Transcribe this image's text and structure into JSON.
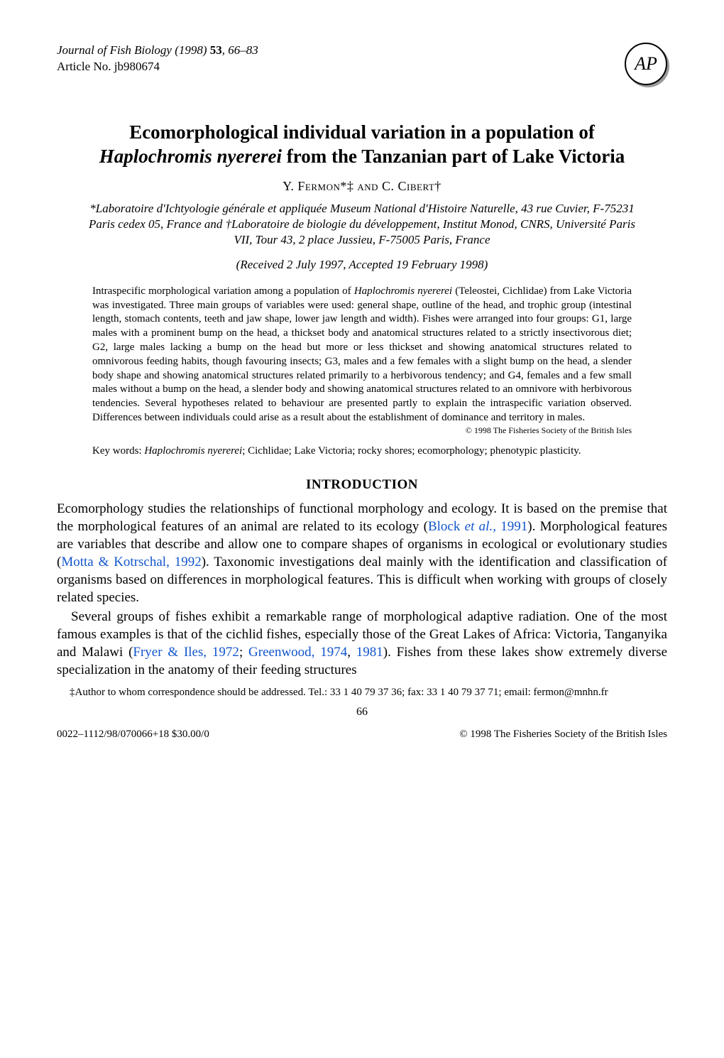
{
  "journal": {
    "name": "Journal of Fish Biology",
    "year": "(1998)",
    "volume": "53",
    "pages": "66–83",
    "article_line": "Article No. jb980674"
  },
  "logo": {
    "text": "AP"
  },
  "title": {
    "pre": "Ecomorphological individual variation in a population of ",
    "species": "Haplochromis nyererei",
    "post": " from the Tanzanian part of Lake Victoria"
  },
  "authors": "Y. Fermon*‡ and C. Cibert†",
  "affiliations": "*Laboratoire d'Ichtyologie générale et appliquée Museum National d'Histoire Naturelle, 43 rue Cuvier, F-75231 Paris cedex 05, France and †Laboratoire de biologie du développement, Institut Monod, CNRS, Université Paris VII, Tour 43, 2 place Jussieu, F-75005 Paris, France",
  "received": "(Received 2 July 1997, Accepted 19 February 1998)",
  "abstract": {
    "pre": "Intraspecific morphological variation among a population of ",
    "species": "Haplochromis nyererei",
    "body": " (Teleostei, Cichlidae) from Lake Victoria was investigated. Three main groups of variables were used: general shape, outline of the head, and trophic group (intestinal length, stomach contents, teeth and jaw shape, lower jaw length and width). Fishes were arranged into four groups: G1, large males with a prominent bump on the head, a thickset body and anatomical structures related to a strictly insectivorous diet; G2, large males lacking a bump on the head but more or less thickset and showing anatomical structures related to omnivorous feeding habits, though favouring insects; G3, males and a few females with a slight bump on the head, a slender body shape and showing anatomical structures related primarily to a herbivorous tendency; and G4, females and a few small males without a bump on the head, a slender body and showing anatomical structures related to an omnivore with herbivorous tendencies. Several hypotheses related to behaviour are presented partly to explain the intraspecific variation observed. Differences between individuals could arise as a result about the establishment of dominance and territory in males.",
    "copyright": "© 1998 The Fisheries Society of the British Isles"
  },
  "keywords": {
    "label": "Key words: ",
    "species": "Haplochromis nyererei",
    "rest": "; Cichlidae; Lake Victoria; rocky shores; ecomorphology; phenotypic plasticity."
  },
  "section_heading": "INTRODUCTION",
  "intro": {
    "p1a": "Ecomorphology studies the relationships of functional morphology and ecology. It is based on the premise that the morphological features of an animal are related to its ecology (",
    "ref1": "Block et al., 1991",
    "p1b": "). Morphological features are variables that describe and allow one to compare shapes of organisms in ecological or evolutionary studies (",
    "ref2": "Motta & Kotrschal, 1992",
    "p1c": "). Taxonomic investigations deal mainly with the identification and classification of organisms based on differences in morphological features. This is difficult when working with groups of closely related species.",
    "p2a": "Several groups of fishes exhibit a remarkable range of morphological adaptive radiation. One of the most famous examples is that of the cichlid fishes, especially those of the Great Lakes of Africa: Victoria, Tanganyika and Malawi (",
    "ref3": "Fryer & Iles, 1972",
    "sep1": "; ",
    "ref4": "Greenwood, 1974",
    "sep2": ", ",
    "ref5": "1981",
    "p2b": "). Fishes from these lakes show extremely diverse specialization in the anatomy of their feeding structures"
  },
  "footnote": "‡Author to whom correspondence should be addressed. Tel.: 33 1 40 79 37 36; fax: 33 1 40 79 37 71; email: fermon@mnhn.fr",
  "page_number": "66",
  "footer": {
    "left": "0022–1112/98/070066+18 $30.00/0",
    "right": "© 1998 The Fisheries Society of the British Isles"
  },
  "colors": {
    "link": "#1155cc",
    "text": "#000000",
    "background": "#ffffff"
  }
}
